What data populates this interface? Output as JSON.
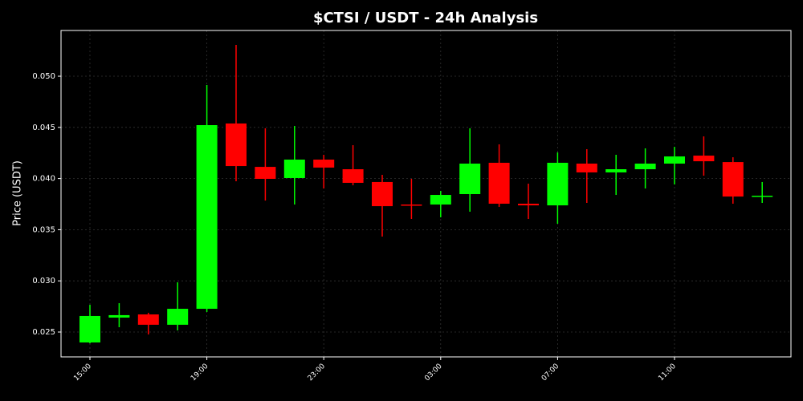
{
  "chart_data": {
    "type": "candlestick",
    "title": "$CTSI / USDT - 24h Analysis",
    "y_label": "Price (USDT)",
    "categories": [
      "15:00",
      null,
      null,
      null,
      "19:00",
      null,
      null,
      null,
      "23:00",
      null,
      null,
      null,
      "03:00",
      null,
      null,
      null,
      "07:00",
      null,
      null,
      null,
      "11:00",
      null,
      null,
      null
    ],
    "open": [
      0.02398,
      0.02641,
      0.02672,
      0.02571,
      0.02727,
      0.04538,
      0.04114,
      0.04005,
      0.04185,
      0.04091,
      0.03966,
      0.03746,
      0.03746,
      0.03848,
      0.04154,
      0.03754,
      0.03738,
      0.04146,
      0.0406,
      0.04091,
      0.04146,
      0.04224,
      0.04161,
      0.03824
    ],
    "high": [
      0.02766,
      0.02782,
      0.02688,
      0.02986,
      0.04914,
      0.05306,
      0.04491,
      0.04514,
      0.04232,
      0.04326,
      0.04036,
      0.03997,
      0.03879,
      0.04491,
      0.04334,
      0.0395,
      0.04255,
      0.04287,
      0.04232,
      0.04295,
      0.0431,
      0.04412,
      0.04208,
      0.03966
    ],
    "low": [
      0.0239,
      0.02547,
      0.02476,
      0.02516,
      0.02696,
      0.03973,
      0.03785,
      0.03746,
      0.03903,
      0.03934,
      0.03433,
      0.03605,
      0.03621,
      0.03676,
      0.03723,
      0.03605,
      0.03558,
      0.03762,
      0.0384,
      0.03903,
      0.03942,
      0.04028,
      0.03754,
      0.03762
    ],
    "close": [
      0.02657,
      0.02665,
      0.02571,
      0.02727,
      0.04522,
      0.04122,
      0.03997,
      0.04185,
      0.04107,
      0.03958,
      0.0373,
      0.03738,
      0.0384,
      0.04146,
      0.03754,
      0.03738,
      0.04154,
      0.0406,
      0.04091,
      0.04146,
      0.04216,
      0.04169,
      0.03824,
      0.03832
    ],
    "up_color": "#00ff00",
    "down_color": "#ff0000",
    "ylim": [
      0.02257,
      0.05447
    ],
    "yticks": [
      0.025,
      {
        "value": 0.03,
        "label": "0.030"
      },
      0.035,
      {
        "value": 0.04,
        "label": "0.040"
      },
      0.045,
      {
        "value": 0.05,
        "label": "0.050"
      }
    ],
    "grid": true
  }
}
